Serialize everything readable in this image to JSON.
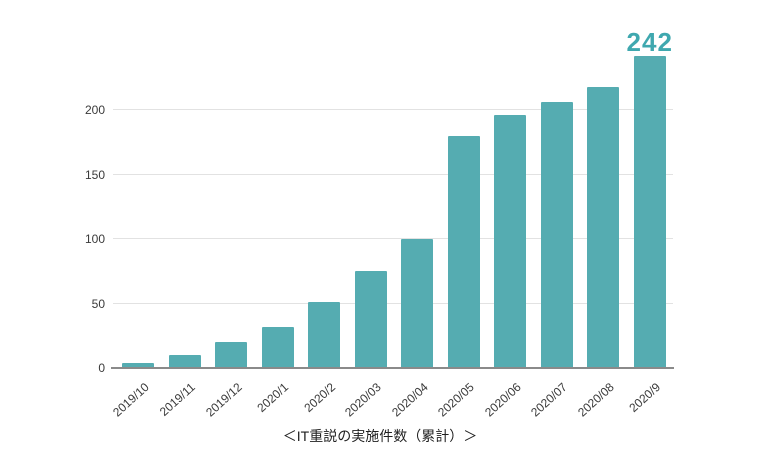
{
  "chart_data": {
    "type": "bar",
    "title": "＜IT重説の実施件数（累計）＞",
    "categories": [
      "2019/10",
      "2019/11",
      "2019/12",
      "2020/1",
      "2020/2",
      "2020/03",
      "2020/04",
      "2020/05",
      "2020/06",
      "2020/07",
      "2020/08",
      "2020/9"
    ],
    "values": [
      4,
      10,
      20,
      32,
      51,
      75,
      100,
      180,
      196,
      206,
      218,
      242
    ],
    "annotation": {
      "text": "242",
      "index": 11
    },
    "y_ticks": [
      0,
      50,
      100,
      150,
      200
    ],
    "ylim": [
      0,
      242
    ],
    "xlabel": "",
    "ylabel": "",
    "legend_position": "none",
    "grid": "horizontal",
    "colors": {
      "bar": "#55acb1",
      "annotation": "#3fa8af",
      "gridline": "#e2e2e2",
      "axis_line": "#8a8a8a",
      "tick_label": "#3a3a3a",
      "caption": "#1f1f1f",
      "background": "#ffffff"
    }
  }
}
